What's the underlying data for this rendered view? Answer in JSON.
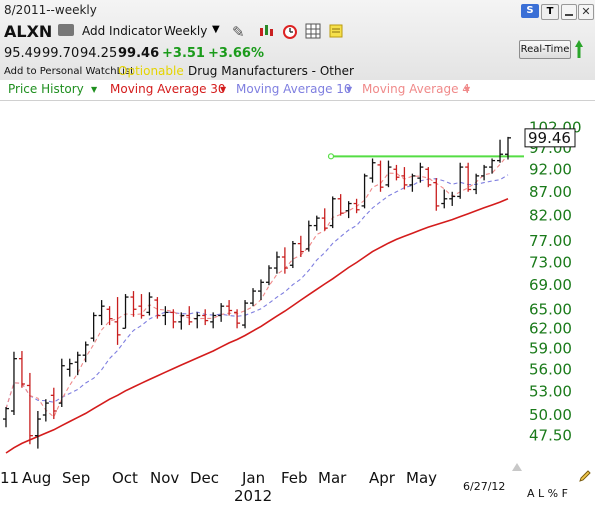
{
  "header": {
    "date_title": "8/2011--weekly",
    "symbol": "ALXN",
    "add_indicator": "Add Indicator",
    "timeframe": "Weekly",
    "open": "95.49",
    "high": "99.70",
    "low": "94.25",
    "close": "99.46",
    "change": "+3.51",
    "change_pct": "+3.66%",
    "watchlist_link": "Add to Personal WatchList",
    "optionable": "Optionable",
    "industry": "Drug Manufacturers - Other",
    "realtime_button": "Real-Time",
    "s_badge": "S",
    "t_badge": "T",
    "colors": {
      "positive": "#1b9b1b",
      "optionable": "#e5d400"
    }
  },
  "legend": [
    {
      "label": "Price History",
      "color": "#1f8f1f"
    },
    {
      "label": "Moving Average 30",
      "color": "#d41c1c"
    },
    {
      "label": "Moving Average 10",
      "color": "#7f7fe0"
    },
    {
      "label": "Moving Average 4",
      "color": "#f08a8a"
    }
  ],
  "footer": {
    "date_stamp": "6/27/12",
    "scale_options": "A L % F"
  },
  "chart_data": {
    "type": "ohlc",
    "title": "",
    "xlabel": "",
    "ylabel": "",
    "y_scale": "log",
    "ylim": [
      45.5,
      105
    ],
    "y_ticks": [
      "102.00",
      "97.00",
      "92.00",
      "87.00",
      "82.00",
      "77.00",
      "73.00",
      "69.00",
      "65.00",
      "62.00",
      "59.00",
      "56.00",
      "53.00",
      "50.00",
      "47.50"
    ],
    "x_labels": [
      "11",
      "Aug",
      "Sep",
      "Oct",
      "Nov",
      "Dec",
      "Jan",
      "Feb",
      "Mar",
      "Apr",
      "May"
    ],
    "x_year_label": "2012",
    "last_price_label": "99.46",
    "resistance_level": 95.0,
    "colors": {
      "up_bar": "#111111",
      "down_bar": "#c81e1e",
      "ma30": "#d41c1c",
      "ma10": "#7f7fe0",
      "ma4": "#f08a8a",
      "resistance": "#55dd44",
      "axis_text": "#1a7a1a"
    },
    "bars": [
      {
        "o": 49.5,
        "h": 51.0,
        "l": 48.5,
        "c": 50.8
      },
      {
        "o": 50.5,
        "h": 58.5,
        "l": 50.0,
        "c": 57.5
      },
      {
        "o": 57.5,
        "h": 58.6,
        "l": 53.5,
        "c": 54.0
      },
      {
        "o": 53.8,
        "h": 55.5,
        "l": 46.5,
        "c": 47.5
      },
      {
        "o": 47.5,
        "h": 50.5,
        "l": 46.0,
        "c": 49.5
      },
      {
        "o": 50.0,
        "h": 52.0,
        "l": 49.2,
        "c": 51.5
      },
      {
        "o": 52.5,
        "h": 53.5,
        "l": 49.5,
        "c": 50.5
      },
      {
        "o": 51.5,
        "h": 57.5,
        "l": 51.0,
        "c": 56.5
      },
      {
        "o": 56.0,
        "h": 57.5,
        "l": 55.0,
        "c": 56.8
      },
      {
        "o": 57.0,
        "h": 58.5,
        "l": 55.2,
        "c": 58.0
      },
      {
        "o": 58.0,
        "h": 60.0,
        "l": 57.0,
        "c": 59.5
      },
      {
        "o": 60.5,
        "h": 64.5,
        "l": 60.0,
        "c": 64.0
      },
      {
        "o": 64.0,
        "h": 66.5,
        "l": 62.5,
        "c": 65.5
      },
      {
        "o": 65.0,
        "h": 65.5,
        "l": 62.5,
        "c": 63.5
      },
      {
        "o": 63.0,
        "h": 67.0,
        "l": 59.5,
        "c": 61.0
      },
      {
        "o": 62.0,
        "h": 67.5,
        "l": 62.0,
        "c": 67.0
      },
      {
        "o": 67.0,
        "h": 68.0,
        "l": 63.8,
        "c": 65.0
      },
      {
        "o": 65.5,
        "h": 67.5,
        "l": 63.5,
        "c": 64.0
      },
      {
        "o": 64.5,
        "h": 67.8,
        "l": 64.0,
        "c": 67.0
      },
      {
        "o": 66.5,
        "h": 67.0,
        "l": 63.5,
        "c": 64.0
      },
      {
        "o": 64.0,
        "h": 65.5,
        "l": 62.5,
        "c": 64.5
      },
      {
        "o": 64.5,
        "h": 65.0,
        "l": 62.0,
        "c": 63.0
      },
      {
        "o": 63.0,
        "h": 64.5,
        "l": 61.8,
        "c": 64.0
      },
      {
        "o": 64.0,
        "h": 65.5,
        "l": 62.5,
        "c": 63.0
      },
      {
        "o": 63.5,
        "h": 64.5,
        "l": 62.0,
        "c": 64.0
      },
      {
        "o": 64.0,
        "h": 65.0,
        "l": 62.5,
        "c": 63.2
      },
      {
        "o": 63.0,
        "h": 64.5,
        "l": 62.0,
        "c": 64.0
      },
      {
        "o": 64.0,
        "h": 66.0,
        "l": 63.0,
        "c": 65.5
      },
      {
        "o": 65.5,
        "h": 66.5,
        "l": 64.0,
        "c": 64.8
      },
      {
        "o": 64.5,
        "h": 65.0,
        "l": 62.0,
        "c": 62.8
      },
      {
        "o": 62.5,
        "h": 66.5,
        "l": 62.0,
        "c": 66.0
      },
      {
        "o": 66.0,
        "h": 68.5,
        "l": 65.5,
        "c": 68.0
      },
      {
        "o": 68.0,
        "h": 70.0,
        "l": 66.5,
        "c": 69.5
      },
      {
        "o": 69.5,
        "h": 72.5,
        "l": 69.0,
        "c": 72.0
      },
      {
        "o": 72.0,
        "h": 75.0,
        "l": 71.0,
        "c": 74.0
      },
      {
        "o": 74.0,
        "h": 75.8,
        "l": 71.0,
        "c": 72.0
      },
      {
        "o": 72.5,
        "h": 77.0,
        "l": 72.0,
        "c": 76.5
      },
      {
        "o": 76.5,
        "h": 78.0,
        "l": 74.0,
        "c": 75.0
      },
      {
        "o": 75.5,
        "h": 81.0,
        "l": 75.0,
        "c": 80.0
      },
      {
        "o": 80.0,
        "h": 82.0,
        "l": 79.0,
        "c": 81.5
      },
      {
        "o": 81.5,
        "h": 83.5,
        "l": 79.0,
        "c": 79.5
      },
      {
        "o": 80.0,
        "h": 86.0,
        "l": 79.5,
        "c": 85.5
      },
      {
        "o": 85.5,
        "h": 86.5,
        "l": 82.0,
        "c": 82.5
      },
      {
        "o": 83.0,
        "h": 85.0,
        "l": 81.5,
        "c": 84.5
      },
      {
        "o": 84.5,
        "h": 85.5,
        "l": 82.5,
        "c": 83.2
      },
      {
        "o": 84.0,
        "h": 91.0,
        "l": 83.5,
        "c": 90.5
      },
      {
        "o": 90.0,
        "h": 94.5,
        "l": 89.0,
        "c": 93.5
      },
      {
        "o": 93.0,
        "h": 94.0,
        "l": 87.0,
        "c": 88.0
      },
      {
        "o": 88.5,
        "h": 94.0,
        "l": 88.0,
        "c": 92.5
      },
      {
        "o": 92.0,
        "h": 93.0,
        "l": 89.5,
        "c": 90.2
      },
      {
        "o": 90.5,
        "h": 92.5,
        "l": 87.5,
        "c": 88.5
      },
      {
        "o": 88.5,
        "h": 91.0,
        "l": 87.0,
        "c": 90.5
      },
      {
        "o": 90.0,
        "h": 93.5,
        "l": 89.0,
        "c": 92.5
      },
      {
        "o": 92.0,
        "h": 92.5,
        "l": 88.0,
        "c": 88.5
      },
      {
        "o": 89.0,
        "h": 90.0,
        "l": 83.0,
        "c": 84.0
      },
      {
        "o": 84.5,
        "h": 87.5,
        "l": 83.5,
        "c": 85.5
      },
      {
        "o": 85.5,
        "h": 87.0,
        "l": 84.0,
        "c": 86.0
      },
      {
        "o": 86.0,
        "h": 93.5,
        "l": 85.5,
        "c": 92.5
      },
      {
        "o": 92.5,
        "h": 93.5,
        "l": 87.0,
        "c": 87.5
      },
      {
        "o": 87.5,
        "h": 91.0,
        "l": 86.5,
        "c": 90.5
      },
      {
        "o": 90.5,
        "h": 93.0,
        "l": 89.5,
        "c": 92.5
      },
      {
        "o": 92.5,
        "h": 94.5,
        "l": 91.0,
        "c": 94.0
      },
      {
        "o": 94.0,
        "h": 99.0,
        "l": 93.5,
        "c": 95.5
      },
      {
        "o": 95.49,
        "h": 99.7,
        "l": 94.25,
        "c": 99.46
      }
    ],
    "ma30": [
      45.5,
      46.1,
      46.6,
      47.0,
      47.4,
      47.8,
      48.2,
      48.7,
      49.2,
      49.7,
      50.2,
      50.8,
      51.4,
      52.0,
      52.5,
      53.1,
      53.6,
      54.1,
      54.6,
      55.1,
      55.6,
      56.1,
      56.6,
      57.1,
      57.6,
      58.1,
      58.6,
      59.2,
      59.8,
      60.3,
      60.9,
      61.6,
      62.3,
      63.1,
      63.9,
      64.7,
      65.6,
      66.5,
      67.4,
      68.3,
      69.2,
      70.1,
      71.1,
      72.1,
      73.0,
      74.0,
      75.0,
      75.8,
      76.6,
      77.3,
      77.9,
      78.5,
      79.1,
      79.7,
      80.2,
      80.7,
      81.2,
      81.8,
      82.4,
      83.0,
      83.6,
      84.2,
      84.8,
      85.5
    ]
  }
}
